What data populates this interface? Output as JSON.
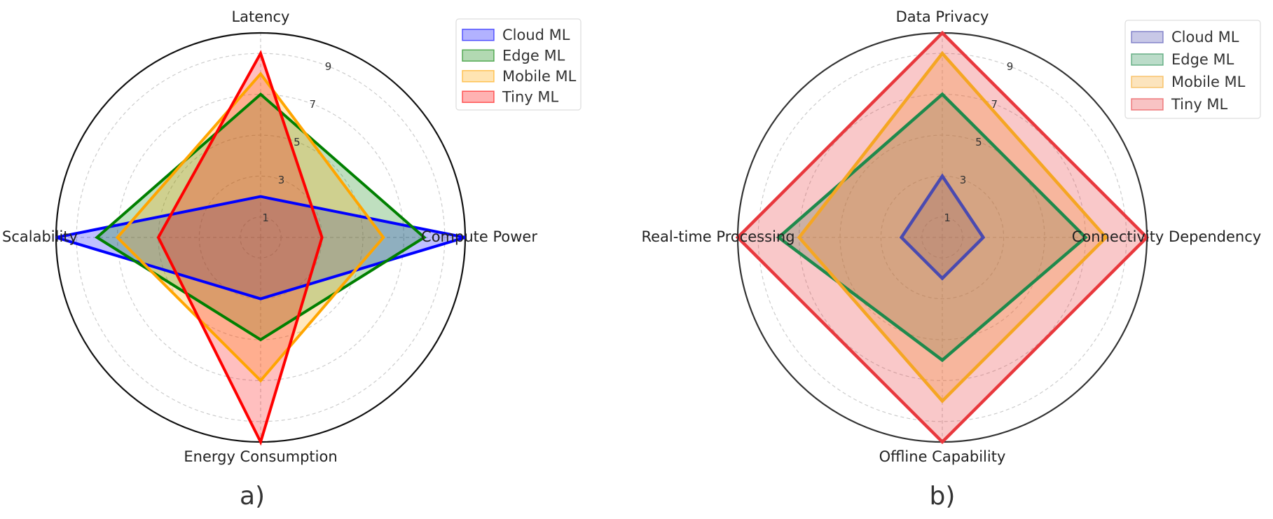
{
  "captions": [
    "a)",
    "b)"
  ],
  "chart_data": [
    {
      "type": "radar",
      "axes": [
        "Latency",
        "Compute Power",
        "Energy Consumption",
        "Scalability"
      ],
      "rlim": [
        0,
        10
      ],
      "r_ticks": [
        "1",
        "3",
        "5",
        "7",
        "9"
      ],
      "grid": true,
      "legend_placement": "top-right",
      "series": [
        {
          "name": "Cloud ML",
          "values": [
            2,
            10,
            3,
            10
          ],
          "color": "#0000ff"
        },
        {
          "name": "Edge ML",
          "values": [
            7,
            8,
            5,
            8
          ],
          "color": "#008000"
        },
        {
          "name": "Mobile ML",
          "values": [
            8,
            6,
            7,
            7
          ],
          "color": "#ffa500"
        },
        {
          "name": "Tiny ML",
          "values": [
            9,
            3,
            10,
            5
          ],
          "color": "#ff0000"
        }
      ]
    },
    {
      "type": "radar",
      "axes": [
        "Data Privacy",
        "Connectivity Dependency",
        "Offline Capability",
        "Real-time Processing"
      ],
      "rlim": [
        0,
        10
      ],
      "r_ticks": [
        "1",
        "3",
        "5",
        "7",
        "9"
      ],
      "grid": true,
      "legend_placement": "top-right",
      "series": [
        {
          "name": "Cloud ML",
          "values": [
            3,
            2,
            2,
            2
          ],
          "color": "#4a4ab0"
        },
        {
          "name": "Edge ML",
          "values": [
            7,
            7,
            6,
            8
          ],
          "color": "#1e8a4c"
        },
        {
          "name": "Mobile ML",
          "values": [
            9,
            8,
            8,
            7
          ],
          "color": "#f5a623"
        },
        {
          "name": "Tiny ML",
          "values": [
            10,
            10,
            10,
            10
          ],
          "color": "#e8383d"
        }
      ]
    }
  ]
}
